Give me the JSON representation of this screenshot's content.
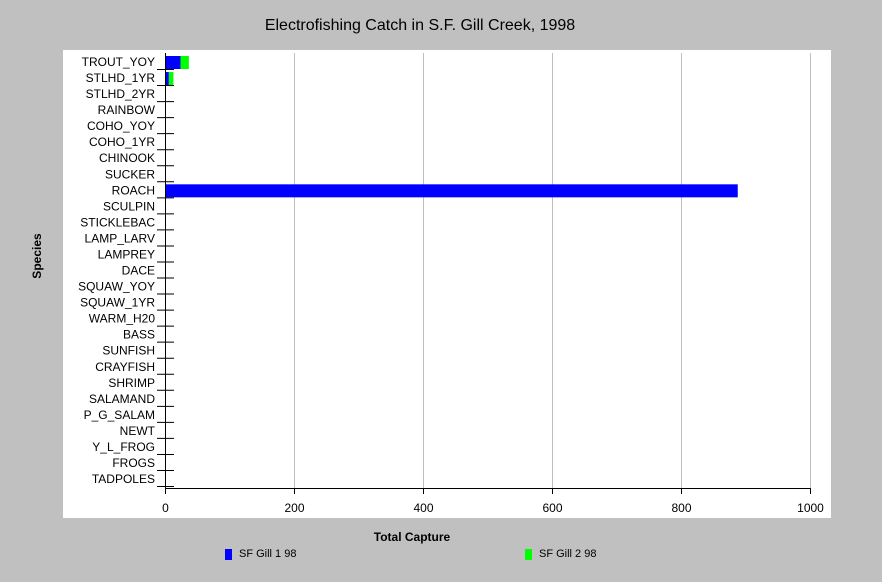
{
  "colors": {
    "background": "#c0c0c0",
    "plot_background": "#ffffff",
    "grid": "#c0c0c0",
    "series_1": "#0000ff",
    "series_2": "#00ff00"
  },
  "chart_data": {
    "type": "bar",
    "orientation": "horizontal",
    "stacked": true,
    "title": "Electrofishing Catch in S.F. Gill Creek, 1998",
    "xlabel": "Total Capture",
    "ylabel": "Species",
    "xlim": [
      0,
      1000
    ],
    "xticks": [
      0,
      200,
      400,
      600,
      800,
      1000
    ],
    "grid": "vertical",
    "legend_position": "bottom",
    "categories": [
      "TROUT_YOY",
      "STLHD_1YR",
      "STLHD_2YR",
      "RAINBOW",
      "COHO_YOY",
      "COHO_1YR",
      "CHINOOK",
      "SUCKER",
      "ROACH",
      "SCULPIN",
      "STICKLEBAC",
      "LAMP_LARV",
      "LAMPREY",
      "DACE",
      "SQUAW_YOY",
      "SQUAW_1YR",
      "WARM_H20",
      "BASS",
      "SUNFISH",
      "CRAYFISH",
      "SHRIMP",
      "SALAMAND",
      "P_G_SALAM",
      "NEWT",
      "Y_L_FROG",
      "FROGS",
      "TADPOLES"
    ],
    "series": [
      {
        "name": "SF Gill 1 98",
        "color": "#0000ff",
        "values": [
          24,
          6,
          0,
          0,
          0,
          0,
          0,
          0,
          888,
          0,
          0,
          0,
          0,
          0,
          0,
          0,
          0,
          0,
          0,
          0,
          0,
          0,
          0,
          0,
          0,
          0,
          0
        ]
      },
      {
        "name": "SF Gill 2 98",
        "color": "#00ff00",
        "values": [
          13,
          7,
          0,
          0,
          0,
          0,
          0,
          0,
          0,
          0,
          0,
          0,
          0,
          0,
          0,
          0,
          0,
          0,
          0,
          0,
          0,
          0,
          0,
          0,
          0,
          1,
          0
        ]
      }
    ]
  }
}
